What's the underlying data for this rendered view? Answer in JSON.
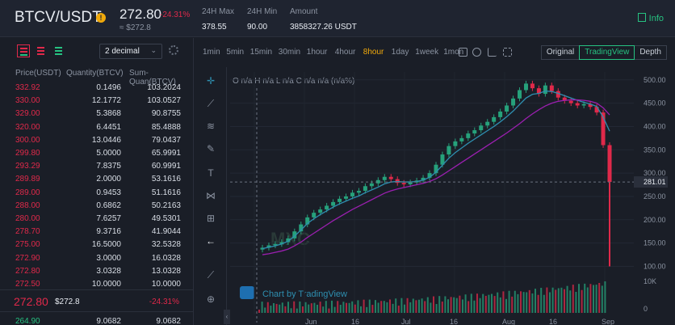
{
  "header": {
    "pair": "BTCV/USDT",
    "info_dot": "!",
    "last_price": "272.80",
    "change_pct": "-24.31%",
    "approx_price": "≈ $272.8",
    "max_label": "24H Max",
    "max_value": "378.55",
    "min_label": "24H Min",
    "min_value": "90.00",
    "amount_label": "Amount",
    "amount_value": "3858327.26 USDT",
    "info_button": "Info"
  },
  "orderbook": {
    "decimal_select": "2 decimal",
    "col_price": "Price(USDT)",
    "col_qty": "Quantity(BTCV)",
    "col_sum": "Sum-Quan(BTCV)",
    "asks": [
      {
        "price": "332.92",
        "qty": "0.1496",
        "sum": "103.2024"
      },
      {
        "price": "330.00",
        "qty": "12.1772",
        "sum": "103.0527"
      },
      {
        "price": "329.00",
        "qty": "5.3868",
        "sum": "90.8755"
      },
      {
        "price": "320.00",
        "qty": "6.4451",
        "sum": "85.4888"
      },
      {
        "price": "300.00",
        "qty": "13.0446",
        "sum": "79.0437"
      },
      {
        "price": "299.80",
        "qty": "5.0000",
        "sum": "65.9991"
      },
      {
        "price": "293.29",
        "qty": "7.8375",
        "sum": "60.9991"
      },
      {
        "price": "289.89",
        "qty": "2.0000",
        "sum": "53.1616"
      },
      {
        "price": "289.00",
        "qty": "0.9453",
        "sum": "51.1616"
      },
      {
        "price": "288.00",
        "qty": "0.6862",
        "sum": "50.2163"
      },
      {
        "price": "280.00",
        "qty": "7.6257",
        "sum": "49.5301"
      },
      {
        "price": "278.70",
        "qty": "9.3716",
        "sum": "41.9044"
      },
      {
        "price": "275.00",
        "qty": "16.5000",
        "sum": "32.5328"
      },
      {
        "price": "272.90",
        "qty": "3.0000",
        "sum": "16.0328"
      },
      {
        "price": "272.80",
        "qty": "3.0328",
        "sum": "13.0328"
      },
      {
        "price": "272.50",
        "qty": "10.0000",
        "sum": "10.0000"
      }
    ],
    "last_price": "272.80",
    "last_usd": "$272.8",
    "last_change": "-24.31%",
    "bid": {
      "price": "264.90",
      "qty": "9.0682",
      "sum": "9.0682"
    }
  },
  "toolbar": {
    "intervals": [
      "1min",
      "5min",
      "15min",
      "30min",
      "1hour",
      "4hour",
      "8hour",
      "1day",
      "1week",
      "1mon"
    ],
    "active_interval": "8hour",
    "view_tabs": [
      "Original",
      "TradingView",
      "Depth"
    ],
    "active_view": "TradingView"
  },
  "chart": {
    "ohlc_label": "O n/a  H n/a  L n/a  C n/a  n/a (n/a%)",
    "watermark": "MXC",
    "attribution": "Chart by TradingView",
    "price_ticks": [
      "500.00",
      "450.00",
      "400.00",
      "350.00",
      "300.00",
      "250.00",
      "200.00",
      "150.00",
      "100.00"
    ],
    "price_tag": "281.01",
    "volume_ticks": [
      "10K",
      "0"
    ],
    "x_ticks": [
      "Jun",
      "16",
      "Jul",
      "16",
      "Aug",
      "16",
      "Sep"
    ],
    "colors": {
      "up": "#26a17b",
      "down": "#e0294a",
      "ma_fast": "#2e8fb0",
      "ma_slow": "#9b1fb0",
      "accent": "#26c281",
      "active": "#f0a90b"
    }
  },
  "chart_data": {
    "type": "candlestick",
    "title": "",
    "xlabel": "",
    "ylabel": "",
    "ylim": [
      80,
      510
    ],
    "x": [
      "Jun",
      "16",
      "Jul",
      "16",
      "Aug",
      "16",
      "Sep"
    ],
    "close_series": [
      140,
      145,
      148,
      152,
      160,
      175,
      190,
      205,
      215,
      222,
      230,
      238,
      245,
      250,
      258,
      262,
      272,
      278,
      285,
      292,
      287,
      279,
      276,
      280,
      284,
      290,
      300,
      318,
      340,
      358,
      368,
      375,
      385,
      392,
      402,
      410,
      420,
      432,
      445,
      460,
      478,
      492,
      482,
      470,
      488,
      476,
      462,
      455,
      450,
      445,
      448,
      442,
      430,
      360,
      281
    ],
    "ma_fast": [
      138,
      141,
      144,
      148,
      154,
      165,
      178,
      192,
      202,
      211,
      219,
      227,
      234,
      240,
      246,
      251,
      258,
      264,
      270,
      277,
      281,
      282,
      281,
      281,
      282,
      285,
      291,
      302,
      317,
      332,
      344,
      354,
      364,
      373,
      382,
      391,
      400,
      410,
      421,
      433,
      447,
      461,
      469,
      471,
      476,
      475,
      471,
      466,
      461,
      456,
      452,
      448,
      443,
      420,
      390
    ],
    "ma_slow": [
      125,
      127,
      130,
      133,
      137,
      144,
      152,
      162,
      171,
      180,
      189,
      198,
      206,
      214,
      222,
      229,
      236,
      243,
      250,
      257,
      262,
      266,
      269,
      272,
      275,
      278,
      282,
      288,
      296,
      305,
      314,
      323,
      332,
      341,
      350,
      359,
      368,
      377,
      386,
      396,
      406,
      417,
      427,
      436,
      444,
      450,
      454,
      456,
      457,
      457,
      456,
      454,
      450,
      440,
      425
    ],
    "spike_low": 100
  }
}
